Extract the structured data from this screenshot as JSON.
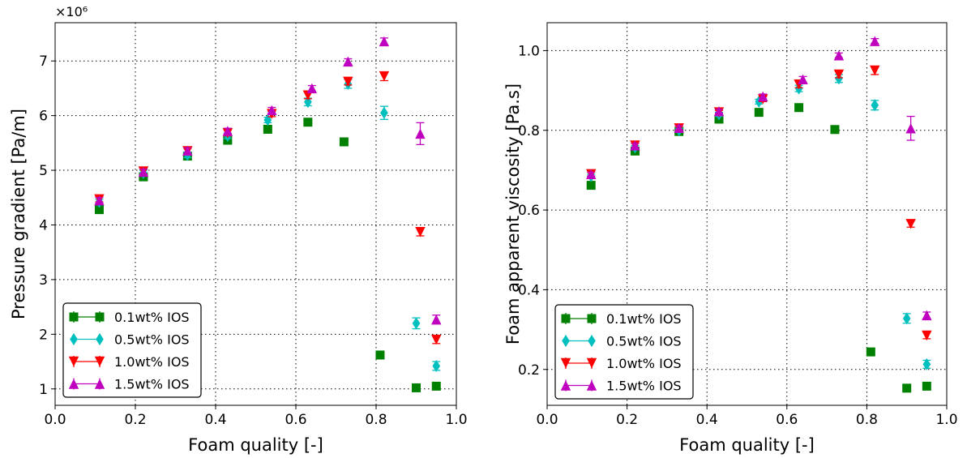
{
  "chart_data": [
    {
      "type": "scatter",
      "title": "",
      "xlabel": "Foam quality [-]",
      "ylabel": "Pressure gradient [Pa/m]",
      "y_offset_label": "×10⁶",
      "xlim": [
        0.0,
        1.0
      ],
      "ylim": [
        0.7,
        7.7
      ],
      "xticks": [
        0.0,
        0.2,
        0.4,
        0.6,
        0.8,
        1.0
      ],
      "xtick_labels": [
        "0.0",
        "0.2",
        "0.4",
        "0.6",
        "0.8",
        "1.0"
      ],
      "yticks": [
        1,
        2,
        3,
        4,
        5,
        6,
        7
      ],
      "ytick_labels": [
        "1",
        "2",
        "3",
        "4",
        "5",
        "6",
        "7"
      ],
      "grid": true,
      "legend_position": "lower-left",
      "series": [
        {
          "name": "0.1wt% IOS",
          "color": "#008000",
          "marker": "square",
          "x": [
            0.11,
            0.22,
            0.33,
            0.43,
            0.53,
            0.63,
            0.72,
            0.81,
            0.9,
            0.95
          ],
          "y": [
            4.28,
            4.88,
            5.26,
            5.55,
            5.75,
            5.88,
            5.52,
            1.62,
            1.02,
            1.05
          ],
          "err": [
            0.05,
            0.05,
            0.05,
            0.05,
            0.05,
            0.05,
            0.05,
            0.05,
            0.05,
            0.05
          ]
        },
        {
          "name": "0.5wt% IOS",
          "color": "#00bfbf",
          "marker": "diamond",
          "x": [
            0.11,
            0.22,
            0.33,
            0.43,
            0.53,
            0.63,
            0.73,
            0.82,
            0.9,
            0.95
          ],
          "y": [
            4.42,
            4.95,
            5.28,
            5.63,
            5.92,
            6.25,
            6.58,
            6.05,
            2.2,
            1.42
          ],
          "err": [
            0.05,
            0.05,
            0.05,
            0.05,
            0.05,
            0.07,
            0.08,
            0.12,
            0.1,
            0.08
          ]
        },
        {
          "name": "1.0wt% IOS",
          "color": "#ff0000",
          "marker": "triangle-down",
          "x": [
            0.11,
            0.22,
            0.33,
            0.43,
            0.54,
            0.63,
            0.73,
            0.82,
            0.91,
            0.95
          ],
          "y": [
            4.47,
            4.98,
            5.35,
            5.68,
            6.03,
            6.37,
            6.62,
            6.72,
            3.87,
            1.9
          ],
          "err": [
            0.05,
            0.05,
            0.05,
            0.05,
            0.05,
            0.06,
            0.06,
            0.08,
            0.07,
            0.07
          ]
        },
        {
          "name": "1.5wt% IOS",
          "color": "#bf00bf",
          "marker": "triangle-up",
          "x": [
            0.11,
            0.22,
            0.33,
            0.43,
            0.54,
            0.64,
            0.73,
            0.82,
            0.91,
            0.95
          ],
          "y": [
            4.45,
            4.97,
            5.36,
            5.72,
            6.1,
            6.5,
            6.99,
            7.36,
            5.67,
            2.27
          ],
          "err": [
            0.05,
            0.05,
            0.05,
            0.05,
            0.05,
            0.05,
            0.05,
            0.06,
            0.2,
            0.08
          ]
        }
      ]
    },
    {
      "type": "scatter",
      "title": "",
      "xlabel": "Foam quality [-]",
      "ylabel": "Foam apparent viscosity [Pa.s]",
      "xlim": [
        0.0,
        1.0
      ],
      "ylim": [
        0.11,
        1.07
      ],
      "xticks": [
        0.0,
        0.2,
        0.4,
        0.6,
        0.8,
        1.0
      ],
      "xtick_labels": [
        "0.0",
        "0.2",
        "0.4",
        "0.6",
        "0.8",
        "1.0"
      ],
      "yticks": [
        0.2,
        0.4,
        0.6,
        0.8,
        1.0
      ],
      "ytick_labels": [
        "0.2",
        "0.4",
        "0.6",
        "0.8",
        "1.0"
      ],
      "grid": true,
      "legend_position": "lower-left",
      "series": [
        {
          "name": "0.1wt% IOS",
          "color": "#008000",
          "marker": "square",
          "x": [
            0.11,
            0.22,
            0.33,
            0.43,
            0.53,
            0.63,
            0.72,
            0.81,
            0.9,
            0.95
          ],
          "y": [
            0.662,
            0.748,
            0.797,
            0.828,
            0.845,
            0.857,
            0.802,
            0.244,
            0.153,
            0.158
          ],
          "err": [
            0.005,
            0.005,
            0.005,
            0.005,
            0.005,
            0.005,
            0.005,
            0.005,
            0.005,
            0.005
          ]
        },
        {
          "name": "0.5wt% IOS",
          "color": "#00bfbf",
          "marker": "diamond",
          "x": [
            0.11,
            0.22,
            0.33,
            0.43,
            0.53,
            0.63,
            0.73,
            0.82,
            0.9,
            0.95
          ],
          "y": [
            0.685,
            0.757,
            0.8,
            0.84,
            0.872,
            0.905,
            0.93,
            0.863,
            0.328,
            0.213
          ],
          "err": [
            0.005,
            0.005,
            0.005,
            0.005,
            0.006,
            0.008,
            0.01,
            0.012,
            0.012,
            0.01
          ]
        },
        {
          "name": "1.0wt% IOS",
          "color": "#ff0000",
          "marker": "triangle-down",
          "x": [
            0.11,
            0.22,
            0.33,
            0.43,
            0.54,
            0.63,
            0.73,
            0.82,
            0.91,
            0.95
          ],
          "y": [
            0.69,
            0.762,
            0.805,
            0.845,
            0.878,
            0.915,
            0.94,
            0.95,
            0.565,
            0.285
          ],
          "err": [
            0.005,
            0.005,
            0.005,
            0.005,
            0.006,
            0.008,
            0.008,
            0.01,
            0.008,
            0.008
          ]
        },
        {
          "name": "1.5wt% IOS",
          "color": "#bf00bf",
          "marker": "triangle-up",
          "x": [
            0.11,
            0.22,
            0.33,
            0.43,
            0.54,
            0.64,
            0.73,
            0.82,
            0.91,
            0.95
          ],
          "y": [
            0.69,
            0.762,
            0.806,
            0.848,
            0.885,
            0.928,
            0.988,
            1.024,
            0.805,
            0.336
          ],
          "err": [
            0.005,
            0.005,
            0.005,
            0.005,
            0.006,
            0.007,
            0.006,
            0.006,
            0.03,
            0.008
          ]
        }
      ]
    }
  ]
}
